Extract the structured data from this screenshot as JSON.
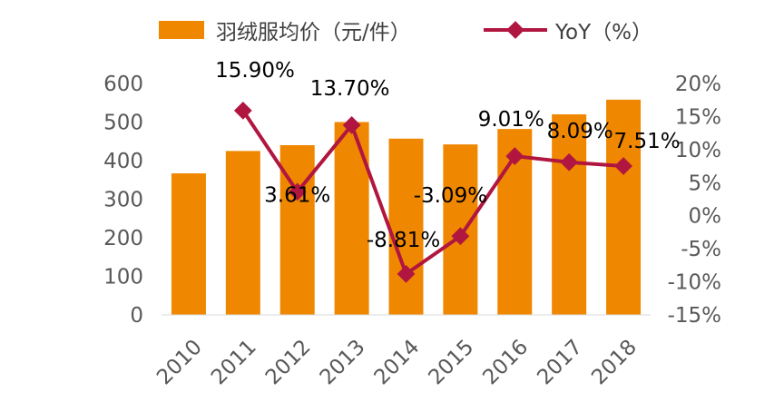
{
  "chart_data": {
    "type": "bar",
    "categories": [
      "2010",
      "2011",
      "2012",
      "2013",
      "2014",
      "2015",
      "2016",
      "2017",
      "2018"
    ],
    "series": [
      {
        "name": "羽绒服均价（元/件）",
        "type": "bar",
        "axis": "left",
        "color": "#F08700",
        "values": [
          367,
          425,
          440,
          500,
          457,
          442,
          482,
          520,
          558
        ]
      },
      {
        "name": "YoY（%）",
        "type": "line",
        "axis": "right",
        "color": "#B0163F",
        "values": [
          null,
          15.9,
          3.61,
          13.7,
          -8.81,
          -3.09,
          9.01,
          8.09,
          7.51
        ],
        "labels": [
          "",
          "15.90%",
          "3.61%",
          "13.70%",
          "-8.81%",
          "-3.09%",
          "9.01%",
          "8.09%",
          "7.51%"
        ]
      }
    ],
    "y_left": {
      "ylim": [
        0,
        600
      ],
      "ticks": [
        "0",
        "100",
        "200",
        "300",
        "400",
        "500",
        "600"
      ]
    },
    "y_right": {
      "ylim": [
        -15,
        20
      ],
      "ticks": [
        "-15%",
        "-10%",
        "-5%",
        "0%",
        "5%",
        "10%",
        "15%",
        "20%"
      ]
    },
    "title": "",
    "xlabel": "",
    "ylabel": "",
    "legend": "top",
    "grid": false
  }
}
